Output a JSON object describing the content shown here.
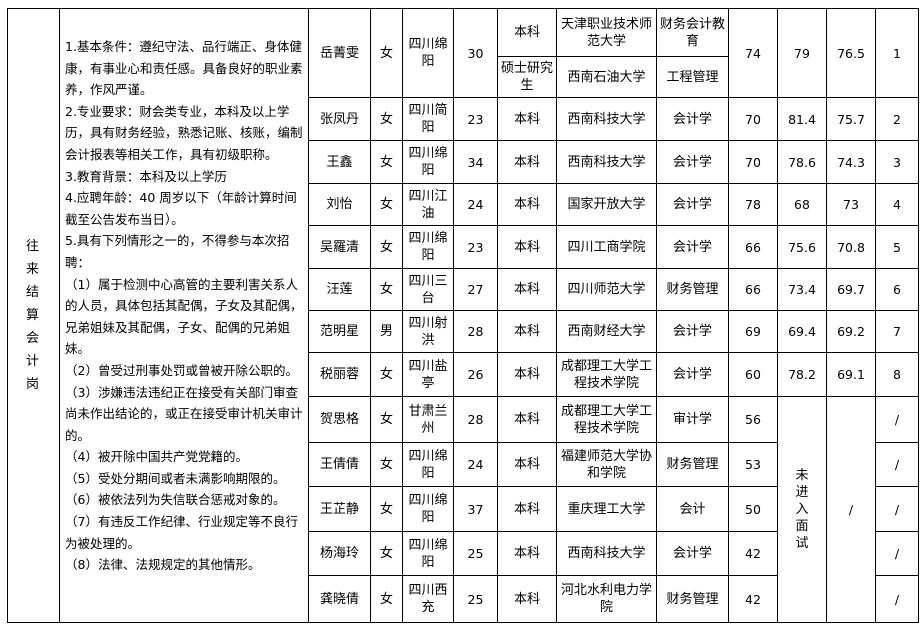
{
  "post": "往来结算会计岗",
  "requirements": [
    "1.基本条件：遵纪守法、品行端正、身体健康，有事业心和责任感。具备良好的职业素养，作风严谨。",
    "2.专业要求：财会类专业，本科及以上学历，具有财务经验，熟悉记账、核账，编制会计报表等相关工作，具有初级职称。",
    "3.教育背景：本科及以上学历",
    "4.应聘年龄：40 周岁以下（年龄计算时间截至公告发布当日）。",
    "5.具有下列情形之一的，不得参与本次招聘：",
    "（1）属于检测中心高管的主要利害关系人的人员，具体包括其配偶，子女及其配偶，兄弟姐妹及其配偶，子女、配偶的兄弟姐妹。",
    "（2）曾受过刑事处罚或曾被开除公职的。",
    "（3）涉嫌违法违纪正在接受有关部门审查尚未作出结论的，或正在接受审计机关审计的。",
    "（4）被开除中国共产党党籍的。",
    "（5）受处分期间或者未满影响期限的。",
    "（6）被依法列为失信联合惩戒对象的。",
    "（7）有违反工作纪律、行业规定等不良行为被处理的。",
    "（8）法律、法规规定的其他情形。"
  ],
  "not_interviewed_label": "未进入面试",
  "slash": "/",
  "candidates": [
    {
      "name": "岳菁雯",
      "gender": "女",
      "origin": "四川绵阳",
      "age": "30",
      "education": [
        {
          "degree": "本科",
          "school": "天津职业技术师范大学",
          "major": "财务会计教育"
        },
        {
          "degree": "硕士研究生",
          "school": "西南石油大学",
          "major": "工程管理"
        }
      ],
      "written": "74",
      "interview": "79",
      "total": "76.5",
      "rank": "1"
    },
    {
      "name": "张凤丹",
      "gender": "女",
      "origin": "四川简阳",
      "age": "23",
      "education": [
        {
          "degree": "本科",
          "school": "西南科技大学",
          "major": "会计学"
        }
      ],
      "written": "70",
      "interview": "81.4",
      "total": "75.7",
      "rank": "2"
    },
    {
      "name": "王鑫",
      "gender": "女",
      "origin": "四川绵阳",
      "age": "34",
      "education": [
        {
          "degree": "本科",
          "school": "西南科技大学",
          "major": "会计学"
        }
      ],
      "written": "70",
      "interview": "78.6",
      "total": "74.3",
      "rank": "3"
    },
    {
      "name": "刘怡",
      "gender": "女",
      "origin": "四川江油",
      "age": "24",
      "education": [
        {
          "degree": "本科",
          "school": "国家开放大学",
          "major": "会计学"
        }
      ],
      "written": "78",
      "interview": "68",
      "total": "73",
      "rank": "4"
    },
    {
      "name": "吴羅清",
      "gender": "女",
      "origin": "四川绵阳",
      "age": "23",
      "education": [
        {
          "degree": "本科",
          "school": "四川工商学院",
          "major": "会计学"
        }
      ],
      "written": "66",
      "interview": "75.6",
      "total": "70.8",
      "rank": "5"
    },
    {
      "name": "汪莲",
      "gender": "女",
      "origin": "四川三台",
      "age": "27",
      "education": [
        {
          "degree": "本科",
          "school": "四川师范大学",
          "major": "财务管理"
        }
      ],
      "written": "66",
      "interview": "73.4",
      "total": "69.7",
      "rank": "6"
    },
    {
      "name": "范明星",
      "gender": "男",
      "origin": "四川射洪",
      "age": "28",
      "education": [
        {
          "degree": "本科",
          "school": "西南财经大学",
          "major": "会计学"
        }
      ],
      "written": "69",
      "interview": "69.4",
      "total": "69.2",
      "rank": "7"
    },
    {
      "name": "税丽蓉",
      "gender": "女",
      "origin": "四川盐亭",
      "age": "26",
      "education": [
        {
          "degree": "本科",
          "school": "成都理工大学工程技术学院",
          "major": "会计学"
        }
      ],
      "written": "60",
      "interview": "78.2",
      "total": "69.1",
      "rank": "8"
    },
    {
      "name": "贺思格",
      "gender": "女",
      "origin": "甘肃兰州",
      "age": "28",
      "education": [
        {
          "degree": "本科",
          "school": "成都理工大学工程技术学院",
          "major": "审计学"
        }
      ],
      "written": "56",
      "rank": "/"
    },
    {
      "name": "王倩倩",
      "gender": "女",
      "origin": "四川绵阳",
      "age": "24",
      "education": [
        {
          "degree": "本科",
          "school": "福建师范大学协和学院",
          "major": "财务管理"
        }
      ],
      "written": "53",
      "rank": "/"
    },
    {
      "name": "王芷静",
      "gender": "女",
      "origin": "四川绵阳",
      "age": "37",
      "education": [
        {
          "degree": "本科",
          "school": "重庆理工大学",
          "major": "会计"
        }
      ],
      "written": "50",
      "rank": "/"
    },
    {
      "name": "杨海玲",
      "gender": "女",
      "origin": "四川绵阳",
      "age": "25",
      "education": [
        {
          "degree": "本科",
          "school": "西南科技大学",
          "major": "会计学"
        }
      ],
      "written": "42",
      "rank": "/"
    },
    {
      "name": "龚晓倩",
      "gender": "女",
      "origin": "四川西充",
      "age": "25",
      "education": [
        {
          "degree": "本科",
          "school": "河北水利电力学院",
          "major": "财务管理"
        }
      ],
      "written": "42",
      "rank": "/"
    }
  ]
}
